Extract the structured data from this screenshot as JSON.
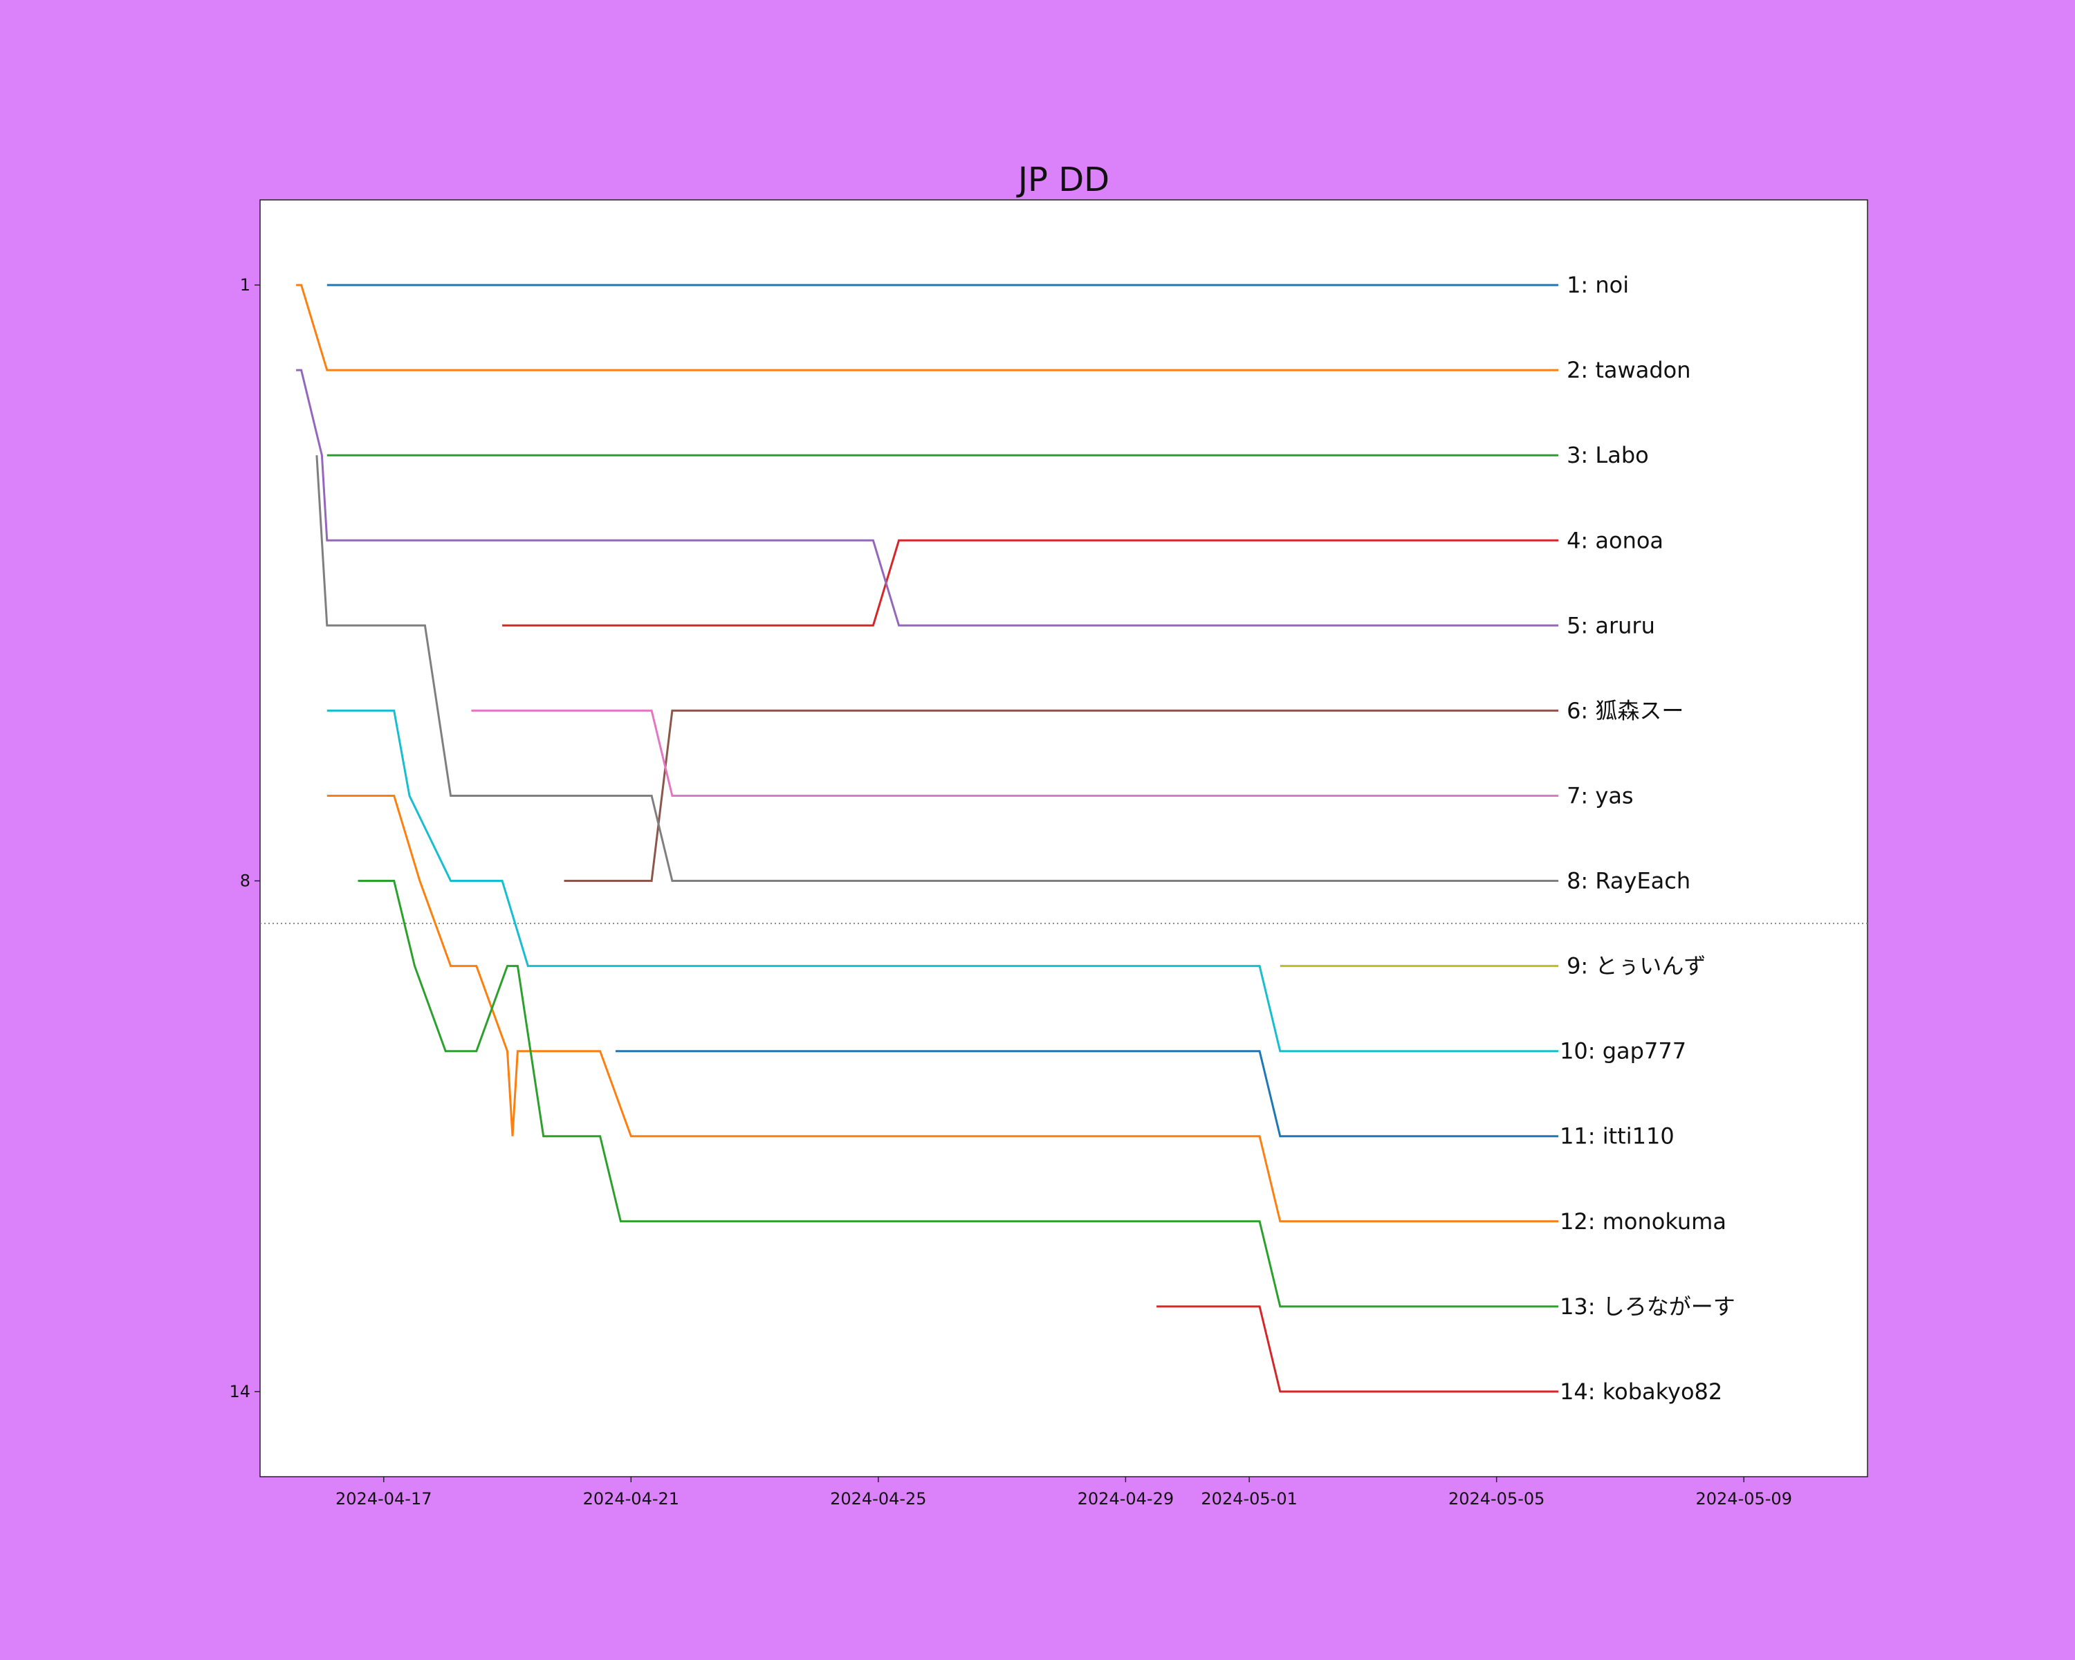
{
  "chart_data": {
    "type": "line",
    "title": "JP DD",
    "xlabel": "",
    "ylabel": "",
    "x_tick_labels": [
      "2024-04-17",
      "2024-04-21",
      "2024-04-25",
      "2024-04-29",
      "2024-05-01",
      "2024-05-05",
      "2024-05-09"
    ],
    "x_ticks": [
      "2024-04-17",
      "2024-04-21",
      "2024-04-25",
      "2024-04-29",
      "2024-05-01",
      "2024-05-05",
      "2024-05-09"
    ],
    "xlim": [
      "2024-04-15",
      "2024-05-11"
    ],
    "y_ticks": [
      1,
      8,
      14
    ],
    "ylim": [
      15,
      0
    ],
    "y_inverted": true,
    "cutoff_line": 8.5,
    "grid": false,
    "legend": "none; series labelled at right end of lines",
    "series": [
      {
        "name": "1: noi",
        "color": "#1f77b4",
        "points": [
          [
            "2024-04-16T02:00",
            1
          ],
          [
            "2024-05-06",
            1
          ]
        ]
      },
      {
        "name": "2: tawadon",
        "color": "#ff7f0e",
        "points": [
          [
            "2024-04-15T14:00",
            1
          ],
          [
            "2024-04-15T16:00",
            1
          ],
          [
            "2024-04-16T02:00",
            2
          ],
          [
            "2024-05-06",
            2
          ]
        ]
      },
      {
        "name": "3: Labo",
        "color": "#2ca02c",
        "points": [
          [
            "2024-04-16T02:00",
            3
          ],
          [
            "2024-05-06",
            3
          ]
        ]
      },
      {
        "name": "4: aonoa",
        "color": "#d62728",
        "points": [
          [
            "2024-04-18T22:00",
            5
          ],
          [
            "2024-04-24T22:00",
            5
          ],
          [
            "2024-04-25T08:00",
            4
          ],
          [
            "2024-05-06",
            4
          ]
        ]
      },
      {
        "name": "5: aruru",
        "color": "#9467bd",
        "points": [
          [
            "2024-04-15T14:00",
            2
          ],
          [
            "2024-04-15T16:00",
            2
          ],
          [
            "2024-04-16T00:00",
            3
          ],
          [
            "2024-04-16T02:00",
            4
          ],
          [
            "2024-04-24T22:00",
            4
          ],
          [
            "2024-04-25T08:00",
            5
          ],
          [
            "2024-05-06",
            5
          ]
        ]
      },
      {
        "name": "6: 狐森スー",
        "color": "#8c564b",
        "points": [
          [
            "2024-04-19T22:00",
            8
          ],
          [
            "2024-04-21T08:00",
            8
          ],
          [
            "2024-04-21T16:00",
            6
          ],
          [
            "2024-05-06",
            6
          ]
        ]
      },
      {
        "name": "7: yas",
        "color": "#e377c2",
        "points": [
          [
            "2024-04-18T10:00",
            6
          ],
          [
            "2024-04-21T08:00",
            6
          ],
          [
            "2024-04-21T16:00",
            7
          ],
          [
            "2024-05-06",
            7
          ]
        ]
      },
      {
        "name": "8: RayEach",
        "color": "#7f7f7f",
        "points": [
          [
            "2024-04-15T22:00",
            3
          ],
          [
            "2024-04-16T02:00",
            5
          ],
          [
            "2024-04-17T16:00",
            5
          ],
          [
            "2024-04-18T02:00",
            7
          ],
          [
            "2024-04-21T08:00",
            7
          ],
          [
            "2024-04-21T16:00",
            8
          ],
          [
            "2024-05-06",
            8
          ]
        ]
      },
      {
        "name": "9: とぅいんず",
        "color": "#bcbd22",
        "points": [
          [
            "2024-05-01T12:00",
            9
          ],
          [
            "2024-05-06",
            9
          ]
        ]
      },
      {
        "name": "10: gap777",
        "color": "#17becf",
        "points": [
          [
            "2024-04-16T02:00",
            6
          ],
          [
            "2024-04-17T04:00",
            6
          ],
          [
            "2024-04-17T10:00",
            7
          ],
          [
            "2024-04-18T02:00",
            8
          ],
          [
            "2024-04-18T22:00",
            8
          ],
          [
            "2024-04-19T08:00",
            9
          ],
          [
            "2024-05-01T04:00",
            9
          ],
          [
            "2024-05-01T12:00",
            10
          ],
          [
            "2024-05-06",
            10
          ]
        ]
      },
      {
        "name": "11: itti110",
        "color": "#1f77b4",
        "points": [
          [
            "2024-04-20T18:00",
            10
          ],
          [
            "2024-05-01T04:00",
            10
          ],
          [
            "2024-05-01T12:00",
            11
          ],
          [
            "2024-05-06",
            11
          ]
        ]
      },
      {
        "name": "12: monokuma",
        "color": "#ff7f0e",
        "points": [
          [
            "2024-04-16T02:00",
            7
          ],
          [
            "2024-04-17T04:00",
            7
          ],
          [
            "2024-04-17T14:00",
            8
          ],
          [
            "2024-04-18T02:00",
            9
          ],
          [
            "2024-04-18T12:00",
            9
          ],
          [
            "2024-04-19T00:00",
            10
          ],
          [
            "2024-04-19T02:00",
            11
          ],
          [
            "2024-04-19T04:00",
            10
          ],
          [
            "2024-04-20T12:00",
            10
          ],
          [
            "2024-04-21T00:00",
            11
          ],
          [
            "2024-05-01T04:00",
            11
          ],
          [
            "2024-05-01T12:00",
            12
          ],
          [
            "2024-05-06",
            12
          ]
        ]
      },
      {
        "name": "13: しろながーす",
        "color": "#2ca02c",
        "points": [
          [
            "2024-04-16T14:00",
            8
          ],
          [
            "2024-04-17T04:00",
            8
          ],
          [
            "2024-04-17T12:00",
            9
          ],
          [
            "2024-04-18T00:00",
            10
          ],
          [
            "2024-04-18T12:00",
            10
          ],
          [
            "2024-04-19T00:00",
            9
          ],
          [
            "2024-04-19T04:00",
            9
          ],
          [
            "2024-04-19T14:00",
            11
          ],
          [
            "2024-04-20T12:00",
            11
          ],
          [
            "2024-04-20T20:00",
            12
          ],
          [
            "2024-05-01T04:00",
            12
          ],
          [
            "2024-05-01T12:00",
            13
          ],
          [
            "2024-05-06",
            13
          ]
        ]
      },
      {
        "name": "14: kobakyo82",
        "color": "#d62728",
        "points": [
          [
            "2024-04-29T12:00",
            13
          ],
          [
            "2024-05-01T04:00",
            13
          ],
          [
            "2024-05-01T12:00",
            14
          ],
          [
            "2024-05-06",
            14
          ]
        ]
      }
    ]
  }
}
